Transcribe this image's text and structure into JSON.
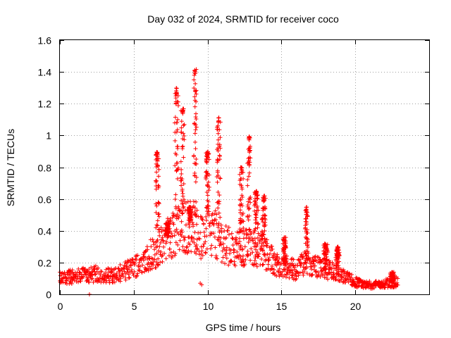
{
  "chart_data": {
    "type": "scatter",
    "title": "Day 032 of 2024, SRMTID for receiver coco",
    "xlabel": "GPS time / hours",
    "ylabel": "SRMTID / TECUs",
    "xlim": [
      0,
      25
    ],
    "ylim": [
      0,
      1.6
    ],
    "xticks": [
      0,
      5,
      10,
      15,
      20
    ],
    "yticks": [
      0,
      0.2,
      0.4,
      0.6,
      0.8,
      1,
      1.2,
      1.4,
      1.6
    ],
    "ytick_labels": [
      "0",
      "0.2",
      "0.4",
      "0.6",
      "0.8",
      "1",
      "1.2",
      "1.4",
      "1.6"
    ],
    "grid": true,
    "marker": "plus",
    "color": "#ff0000",
    "series": [
      {
        "name": "SRMTID",
        "envelope": [
          [
            0.0,
            0.1
          ],
          [
            0.5,
            0.11
          ],
          [
            1.0,
            0.11
          ],
          [
            1.5,
            0.12
          ],
          [
            2.0,
            0.12
          ],
          [
            2.5,
            0.13
          ],
          [
            3.0,
            0.12
          ],
          [
            3.5,
            0.12
          ],
          [
            4.0,
            0.13
          ],
          [
            4.5,
            0.15
          ],
          [
            5.0,
            0.17
          ],
          [
            5.5,
            0.21
          ],
          [
            6.0,
            0.24
          ],
          [
            6.5,
            0.27
          ],
          [
            7.0,
            0.33
          ],
          [
            7.5,
            0.38
          ],
          [
            8.0,
            0.4
          ],
          [
            8.5,
            0.42
          ],
          [
            9.0,
            0.45
          ],
          [
            9.5,
            0.35
          ],
          [
            10.0,
            0.4
          ],
          [
            10.5,
            0.38
          ],
          [
            11.0,
            0.33
          ],
          [
            11.5,
            0.3
          ],
          [
            12.0,
            0.28
          ],
          [
            12.5,
            0.3
          ],
          [
            13.0,
            0.3
          ],
          [
            13.5,
            0.28
          ],
          [
            14.0,
            0.25
          ],
          [
            14.5,
            0.2
          ],
          [
            15.0,
            0.18
          ],
          [
            15.5,
            0.17
          ],
          [
            16.0,
            0.15
          ],
          [
            16.5,
            0.2
          ],
          [
            17.0,
            0.18
          ],
          [
            17.5,
            0.17
          ],
          [
            18.0,
            0.16
          ],
          [
            18.5,
            0.15
          ],
          [
            19.0,
            0.12
          ],
          [
            19.5,
            0.1
          ],
          [
            20.0,
            0.08
          ],
          [
            20.5,
            0.06
          ],
          [
            21.0,
            0.06
          ],
          [
            21.5,
            0.06
          ],
          [
            22.0,
            0.07
          ],
          [
            22.5,
            0.07
          ],
          [
            22.9,
            0.08
          ]
        ],
        "bursts": [
          {
            "center": 6.6,
            "peak": 0.9,
            "width": 0.25
          },
          {
            "center": 7.3,
            "peak": 0.45,
            "width": 0.3
          },
          {
            "center": 7.9,
            "peak": 1.3,
            "width": 0.25
          },
          {
            "center": 8.3,
            "peak": 1.17,
            "width": 0.25
          },
          {
            "center": 8.8,
            "peak": 0.55,
            "width": 0.2
          },
          {
            "center": 9.15,
            "peak": 1.42,
            "width": 0.2
          },
          {
            "center": 10.0,
            "peak": 0.9,
            "width": 0.25
          },
          {
            "center": 10.75,
            "peak": 1.12,
            "width": 0.25
          },
          {
            "center": 12.3,
            "peak": 0.8,
            "width": 0.25
          },
          {
            "center": 12.8,
            "peak": 1.01,
            "width": 0.2
          },
          {
            "center": 13.3,
            "peak": 0.65,
            "width": 0.25
          },
          {
            "center": 13.8,
            "peak": 0.62,
            "width": 0.25
          },
          {
            "center": 15.2,
            "peak": 0.36,
            "width": 0.2
          },
          {
            "center": 16.7,
            "peak": 0.55,
            "width": 0.2
          },
          {
            "center": 18.0,
            "peak": 0.32,
            "width": 0.3
          },
          {
            "center": 18.8,
            "peak": 0.3,
            "width": 0.25
          },
          {
            "center": 22.5,
            "peak": 0.14,
            "width": 0.3
          }
        ],
        "dips": [
          {
            "x": 9.5,
            "y": 0.07
          },
          {
            "x": 9.6,
            "y": 0.06
          },
          {
            "x": 2.0,
            "y": 0.0
          }
        ]
      }
    ]
  }
}
